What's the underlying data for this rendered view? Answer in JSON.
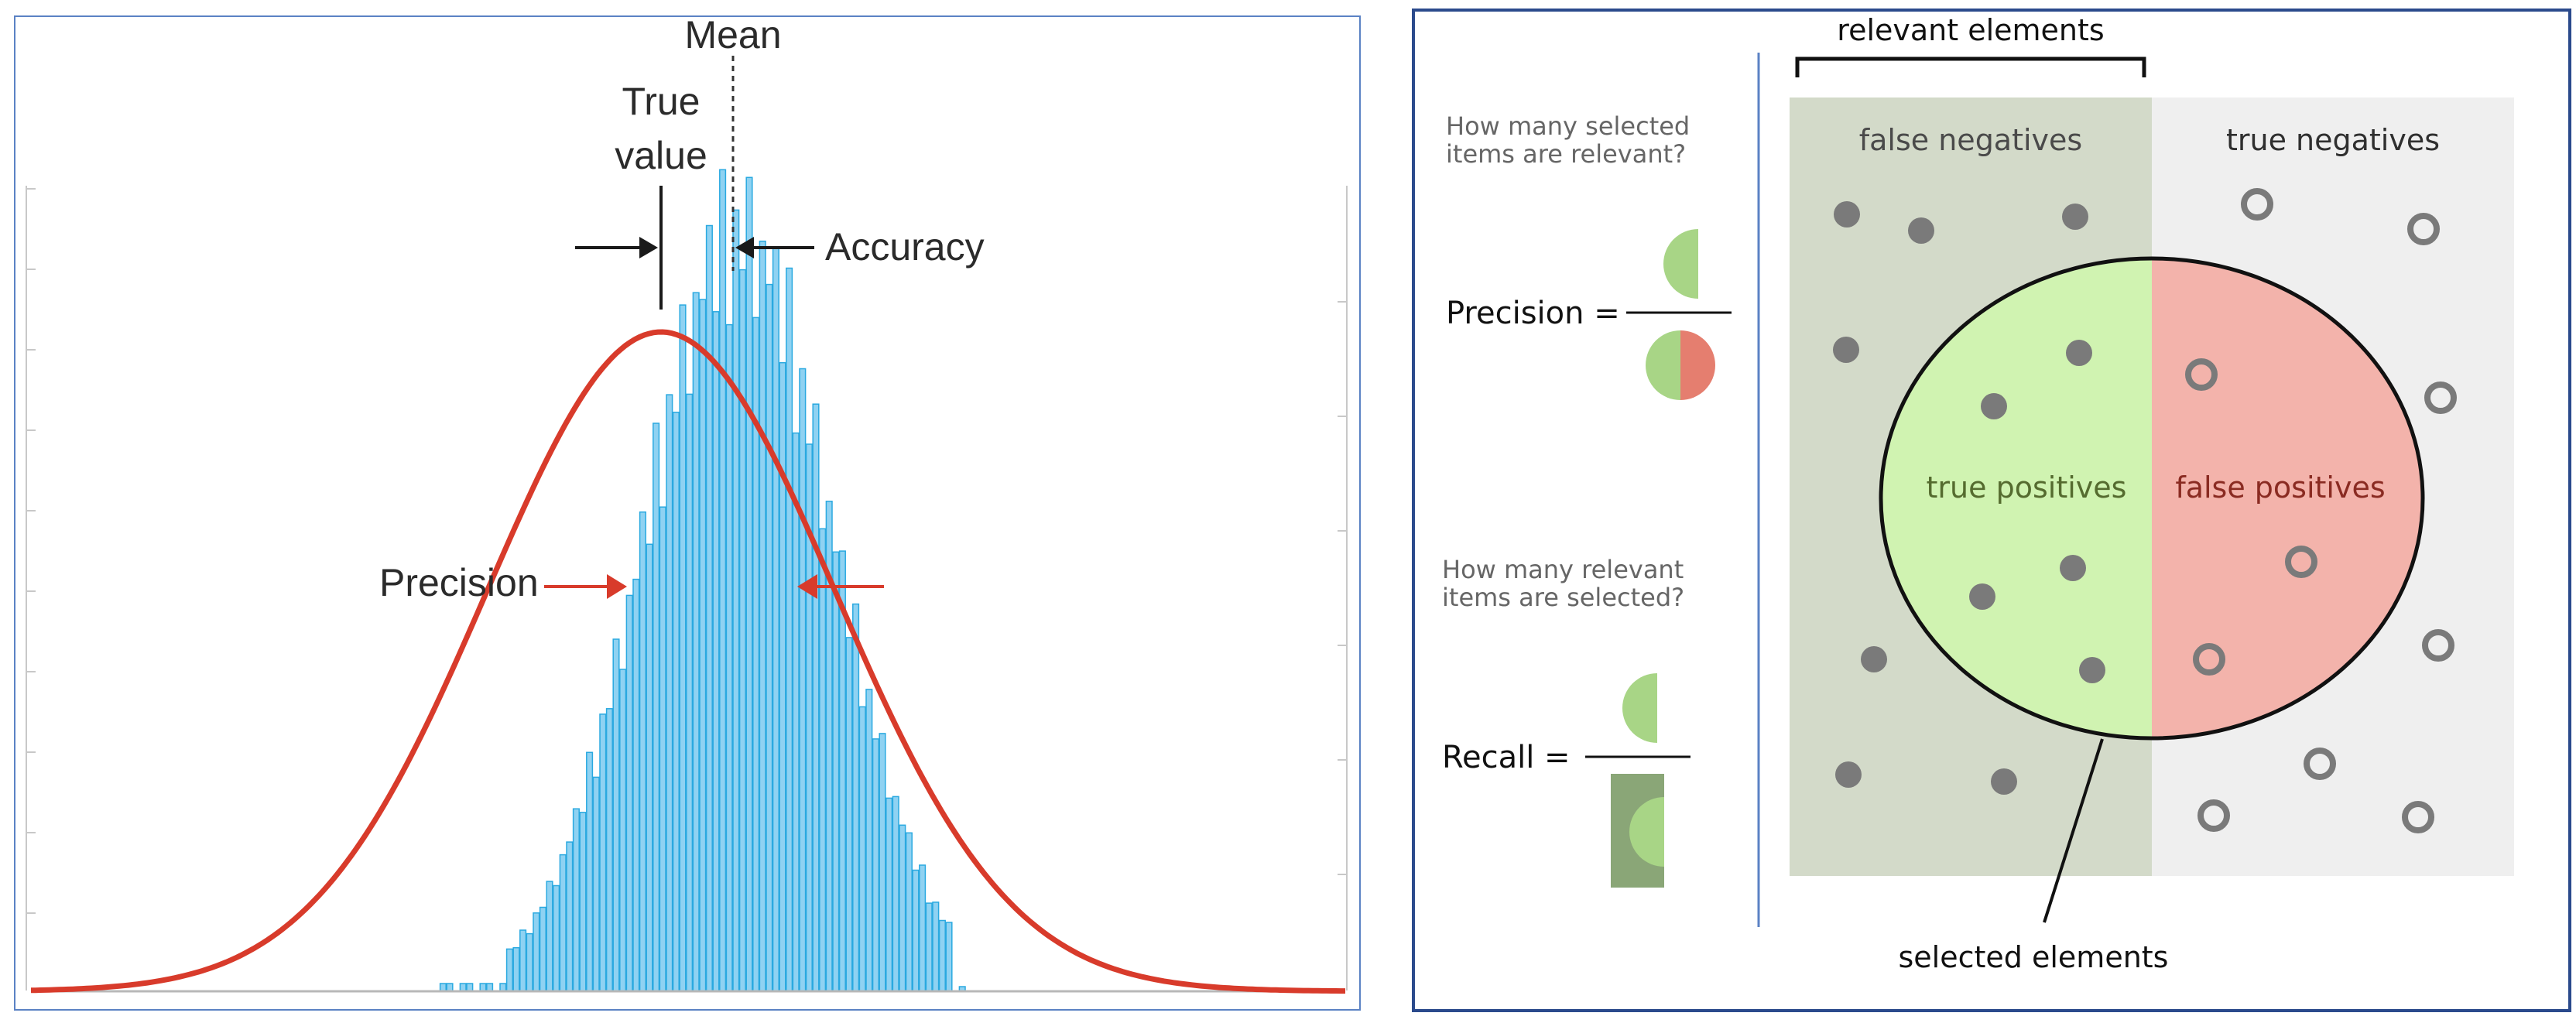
{
  "left_figure": {
    "labels": {
      "mean": "Mean",
      "true_value_line1": "True",
      "true_value_line2": "value",
      "accuracy": "Accuracy",
      "precision": "Precision"
    },
    "colors": {
      "curve": "#d83b2b",
      "bars": "#8fd2f2",
      "bar_edge": "#2aa9e0",
      "frame": "#5b82c4",
      "arrow_black": "#1a1a1a",
      "arrow_red": "#d83b2b"
    }
  },
  "right_figure": {
    "header": "relevant elements",
    "footer": "selected elements",
    "question_precision_line1": "How many selected",
    "question_precision_line2": "items are relevant?",
    "question_recall_line1": "How many relevant",
    "question_recall_line2": "items are selected?",
    "precision_label": "Precision =",
    "recall_label": "Recall =",
    "regions": {
      "false_negatives": "false negatives",
      "true_negatives": "true negatives",
      "true_positives": "true positives",
      "false_positives": "false positives"
    },
    "colors": {
      "relevant_bg": "#d3dac9",
      "irrelevant_bg": "#efefef",
      "true_pos": "#d0f3b1",
      "false_pos": "#f3b3ab",
      "dot": "#7a7a7a",
      "green_half": "#a8d586",
      "red_half": "#e57e6f",
      "dark_green": "#8aa677",
      "frame": "#2b4a8c"
    }
  }
}
